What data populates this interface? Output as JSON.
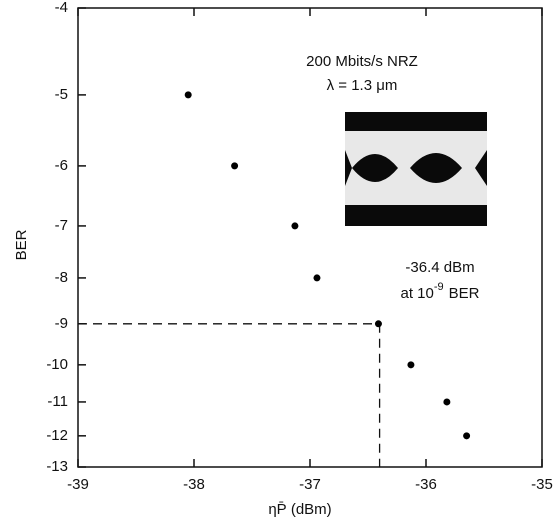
{
  "chart_data": {
    "type": "scatter",
    "x_label": "ηP̄ (dBm)",
    "y_label": "BER",
    "x": [
      -38.05,
      -37.65,
      -37.13,
      -36.94,
      -36.41,
      -36.13,
      -35.82,
      -35.65
    ],
    "values": [
      -5,
      -6,
      -7,
      -8,
      -9,
      -10,
      -11,
      -12
    ],
    "color": "#000000",
    "xlim": [
      -39,
      -35
    ],
    "xticks": [
      -39,
      -38,
      -37,
      -36,
      -35
    ],
    "ylim": [
      -4,
      -13
    ],
    "yticks": [
      -4,
      -5,
      -6,
      -7,
      -8,
      -9,
      -10,
      -11,
      -12,
      -13
    ],
    "yscale": "log",
    "reference": {
      "x": -36.4,
      "y": -9
    },
    "annotations": {
      "rate": "200 Mbits/s NRZ",
      "wavelength": "λ = 1.3 μm",
      "power": "-36.4 dBm",
      "ber": [
        "at 10",
        "-9",
        "BER"
      ]
    }
  }
}
